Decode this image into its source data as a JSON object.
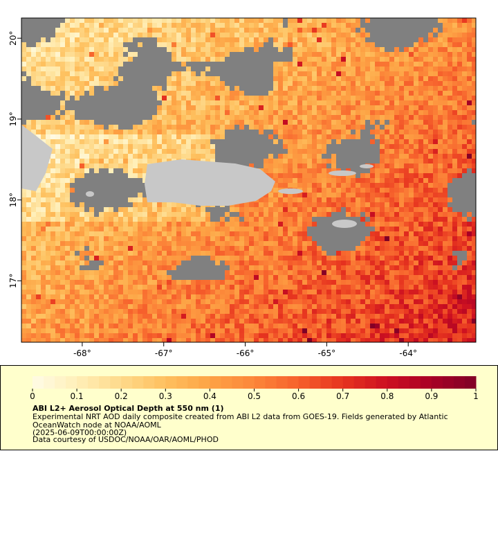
{
  "map": {
    "xticks": [
      {
        "value": -68,
        "label": "-68°"
      },
      {
        "value": -67,
        "label": "-67°"
      },
      {
        "value": -66,
        "label": "-66°"
      },
      {
        "value": -65,
        "label": "-65°"
      },
      {
        "value": -64,
        "label": "-64°"
      }
    ],
    "yticks": [
      {
        "value": 17,
        "label": "17°"
      },
      {
        "value": 18,
        "label": "18°"
      },
      {
        "value": 19,
        "label": "19°"
      },
      {
        "value": 20,
        "label": "20°"
      }
    ],
    "xlim": [
      -68.746,
      -63.17
    ],
    "ylim": [
      16.24,
      20.25
    ]
  },
  "colorbar": {
    "lim": [
      0,
      1
    ],
    "ticks": [
      0,
      0.1,
      0.2,
      0.3,
      0.4,
      0.5,
      0.6,
      0.7,
      0.8,
      0.9,
      1
    ],
    "colors": [
      "#fffbe6",
      "#ffefb8",
      "#fed98a",
      "#fec05e",
      "#fda345",
      "#fc8639",
      "#f6602c",
      "#e6331f",
      "#cc1021",
      "#a80026",
      "#800026"
    ]
  },
  "legend": {
    "title": "ABI L2+ Aerosol Optical Depth at 550 nm (1)",
    "lines": [
      "Experimental NRT AOD daily composite created from ABI L2 data from GOES-19. Fields generated by Atlantic",
      "OceanWatch node at NOAA/AOML",
      "(2025-06-09T00:00:00Z)",
      "Data courtesy of USDOC/NOAA/OAR/AOML/PHOD"
    ]
  }
}
